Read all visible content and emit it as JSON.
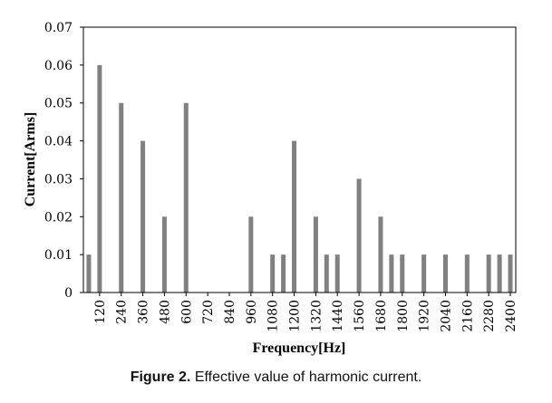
{
  "chart_data": {
    "type": "bar",
    "xlabel": "Frequency[Hz]",
    "ylabel": "Current[Arms]",
    "ylim": [
      0,
      0.07
    ],
    "yticks": [
      "0",
      "0.01",
      "0.02",
      "0.03",
      "0.04",
      "0.05",
      "0.06",
      "0.07"
    ],
    "xticks": [
      "120",
      "240",
      "360",
      "480",
      "600",
      "720",
      "840",
      "960",
      "1080",
      "1200",
      "1320",
      "1440",
      "1560",
      "1680",
      "1800",
      "1920",
      "2040",
      "2160",
      "2280",
      "2400"
    ],
    "x": [
      60,
      120,
      180,
      240,
      300,
      360,
      420,
      480,
      540,
      600,
      660,
      720,
      780,
      840,
      900,
      960,
      1020,
      1080,
      1140,
      1200,
      1260,
      1320,
      1380,
      1440,
      1500,
      1560,
      1620,
      1680,
      1740,
      1800,
      1860,
      1920,
      1980,
      2040,
      2100,
      2160,
      2220,
      2280,
      2340,
      2400
    ],
    "values": [
      0.01,
      0.06,
      0,
      0.05,
      0,
      0.04,
      0,
      0.02,
      0,
      0.05,
      0,
      0,
      0,
      0,
      0,
      0.02,
      0,
      0.01,
      0.01,
      0.04,
      0,
      0.02,
      0.01,
      0.01,
      0,
      0.03,
      0,
      0.02,
      0.01,
      0.01,
      0,
      0.01,
      0,
      0.01,
      0,
      0.01,
      0,
      0.01,
      0.01,
      0.01
    ],
    "bar_color": "#808080",
    "grid": false
  },
  "caption": {
    "label": "Figure 2.",
    "text": " Effective value of harmonic current."
  }
}
